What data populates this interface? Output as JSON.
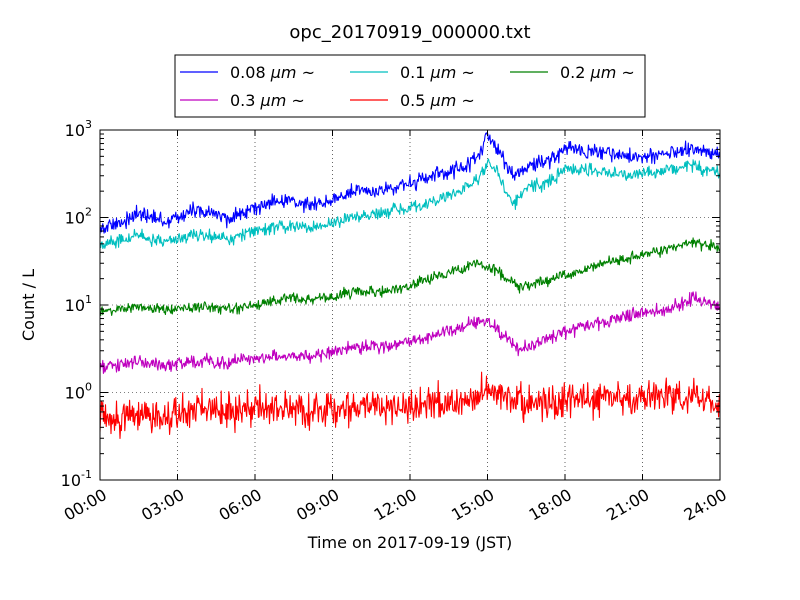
{
  "chart_data": {
    "type": "line",
    "title": "opc_20170919_000000.txt",
    "xlabel": "Time on 2017-09-19 (JST)",
    "ylabel": "Count / L",
    "xlim": [
      0,
      24
    ],
    "ylim": [
      0.1,
      1000
    ],
    "yscale": "log",
    "grid": true,
    "legend": {
      "placement": "top",
      "ncol": 3
    },
    "xtick_labels": [
      "00:00",
      "03:00",
      "06:00",
      "09:00",
      "12:00",
      "15:00",
      "18:00",
      "21:00",
      "24:00"
    ],
    "ytick_labels": [
      {
        "base": "10",
        "exp": "-1"
      },
      {
        "base": "10",
        "exp": "0"
      },
      {
        "base": "10",
        "exp": "1"
      },
      {
        "base": "10",
        "exp": "2"
      },
      {
        "base": "10",
        "exp": "3"
      }
    ],
    "series": [
      {
        "name": "0.08 μm ~",
        "label_size": "0.08",
        "label_unit": "μm",
        "label_tail": "~",
        "color": "#0000ff",
        "noise": 0.06,
        "x": [
          0,
          0.5,
          1,
          1.5,
          2,
          2.5,
          3,
          3.5,
          4,
          4.5,
          5,
          5.5,
          6,
          6.5,
          7,
          7.5,
          8,
          8.5,
          9,
          9.5,
          10,
          10.5,
          11,
          11.5,
          12,
          12.5,
          13,
          13.5,
          14,
          14.3,
          14.6,
          15,
          15.3,
          15.6,
          16,
          16.3,
          16.6,
          17,
          17.3,
          17.6,
          18,
          18.5,
          19,
          19.5,
          20,
          20.5,
          21,
          21.5,
          22,
          22.5,
          23,
          23.5,
          24
        ],
        "y": [
          75,
          80,
          95,
          110,
          100,
          90,
          100,
          120,
          115,
          110,
          90,
          120,
          130,
          145,
          150,
          160,
          140,
          150,
          160,
          185,
          195,
          200,
          210,
          230,
          240,
          270,
          300,
          330,
          380,
          420,
          500,
          800,
          700,
          450,
          300,
          320,
          400,
          420,
          450,
          480,
          600,
          590,
          580,
          540,
          520,
          510,
          500,
          510,
          530,
          560,
          600,
          550,
          520
        ]
      },
      {
        "name": "0.1 μm ~",
        "label_size": "0.1",
        "label_unit": "μm",
        "label_tail": "~",
        "color": "#00bfbf",
        "noise": 0.05,
        "x": [
          0,
          0.5,
          1,
          1.5,
          2,
          2.5,
          3,
          3.5,
          4,
          4.5,
          5,
          5.5,
          6,
          6.5,
          7,
          7.5,
          8,
          8.5,
          9,
          9.5,
          10,
          10.5,
          11,
          11.5,
          12,
          12.5,
          13,
          13.5,
          14,
          14.3,
          14.6,
          15,
          15.3,
          15.6,
          16,
          16.3,
          16.6,
          17,
          17.3,
          17.6,
          18,
          18.5,
          19,
          19.5,
          20,
          20.5,
          21,
          21.5,
          22,
          22.5,
          23,
          23.5,
          24
        ],
        "y": [
          48,
          52,
          58,
          62,
          57,
          54,
          58,
          62,
          64,
          60,
          55,
          65,
          70,
          75,
          78,
          82,
          75,
          80,
          85,
          95,
          100,
          105,
          110,
          120,
          125,
          140,
          160,
          175,
          200,
          230,
          270,
          420,
          360,
          240,
          140,
          170,
          220,
          240,
          250,
          280,
          340,
          360,
          350,
          330,
          310,
          315,
          320,
          330,
          350,
          380,
          400,
          340,
          320
        ]
      },
      {
        "name": "0.2 μm ~",
        "label_size": "0.2",
        "label_unit": "μm",
        "label_tail": "~",
        "color": "#008000",
        "noise": 0.04,
        "x": [
          0,
          0.5,
          1,
          1.5,
          2,
          2.5,
          3,
          3.5,
          4,
          4.5,
          5,
          5.5,
          6,
          6.5,
          7,
          7.5,
          8,
          8.5,
          9,
          9.5,
          10,
          10.5,
          11,
          11.5,
          12,
          12.5,
          13,
          13.5,
          14,
          14.3,
          14.6,
          15,
          15.3,
          15.6,
          16,
          16.3,
          16.6,
          17,
          17.3,
          17.6,
          18,
          18.5,
          19,
          19.5,
          20,
          20.5,
          21,
          21.5,
          22,
          22.5,
          23,
          23.5,
          24
        ],
        "y": [
          8.5,
          8.8,
          9.2,
          9.5,
          9.0,
          8.8,
          9.0,
          9.3,
          9.5,
          9.2,
          8.8,
          9.5,
          10,
          11,
          11.5,
          12,
          11.5,
          12,
          12.5,
          13.5,
          14,
          15,
          14,
          15,
          17,
          19,
          21,
          23,
          25,
          27,
          30,
          28,
          25,
          22,
          18,
          16,
          17,
          18,
          19,
          20,
          22,
          24,
          27,
          30,
          32,
          35,
          38,
          40,
          44,
          48,
          52,
          48,
          45
        ]
      },
      {
        "name": "0.3 μm ~",
        "label_size": "0.3",
        "label_unit": "μm",
        "label_tail": "~",
        "color": "#bf00bf",
        "noise": 0.05,
        "x": [
          0,
          0.5,
          1,
          1.5,
          2,
          2.5,
          3,
          3.5,
          4,
          4.5,
          5,
          5.5,
          6,
          6.5,
          7,
          7.5,
          8,
          8.5,
          9,
          9.5,
          10,
          10.5,
          11,
          11.5,
          12,
          12.5,
          13,
          13.5,
          14,
          14.3,
          14.6,
          15,
          15.3,
          15.6,
          16,
          16.3,
          16.6,
          17,
          17.3,
          17.6,
          18,
          18.5,
          19,
          19.5,
          20,
          20.5,
          21,
          21.5,
          22,
          22.5,
          23,
          23.5,
          24
        ],
        "y": [
          1.9,
          2.0,
          2.1,
          2.2,
          2.1,
          2.0,
          2.1,
          2.2,
          2.3,
          2.2,
          2.2,
          2.4,
          2.5,
          2.6,
          2.6,
          2.7,
          2.6,
          2.8,
          2.9,
          3.2,
          3.3,
          3.4,
          3.3,
          3.5,
          3.7,
          4.0,
          4.5,
          5.0,
          5.5,
          6.0,
          6.5,
          6.5,
          5.5,
          4.5,
          3.5,
          3.0,
          3.3,
          4.0,
          4.2,
          4.4,
          5.0,
          5.5,
          6.0,
          6.5,
          7.0,
          7.5,
          8.0,
          8.5,
          9.0,
          10.5,
          12,
          10.5,
          9.5
        ]
      },
      {
        "name": "0.5 μm ~",
        "label_size": "0.5",
        "label_unit": "μm",
        "label_tail": "~",
        "color": "#ff0000",
        "noise": 0.13,
        "x": [
          0,
          1,
          2,
          3,
          4,
          5,
          6,
          7,
          8,
          9,
          10,
          11,
          12,
          13,
          14,
          14.5,
          15,
          15.5,
          16,
          17,
          18,
          19,
          20,
          21,
          22,
          23,
          24
        ],
        "y": [
          0.5,
          0.5,
          0.55,
          0.55,
          0.6,
          0.6,
          0.65,
          0.65,
          0.65,
          0.65,
          0.7,
          0.7,
          0.7,
          0.75,
          0.8,
          0.9,
          1.05,
          0.9,
          0.8,
          0.75,
          0.8,
          0.85,
          0.85,
          0.85,
          0.9,
          0.9,
          0.75
        ]
      }
    ]
  }
}
